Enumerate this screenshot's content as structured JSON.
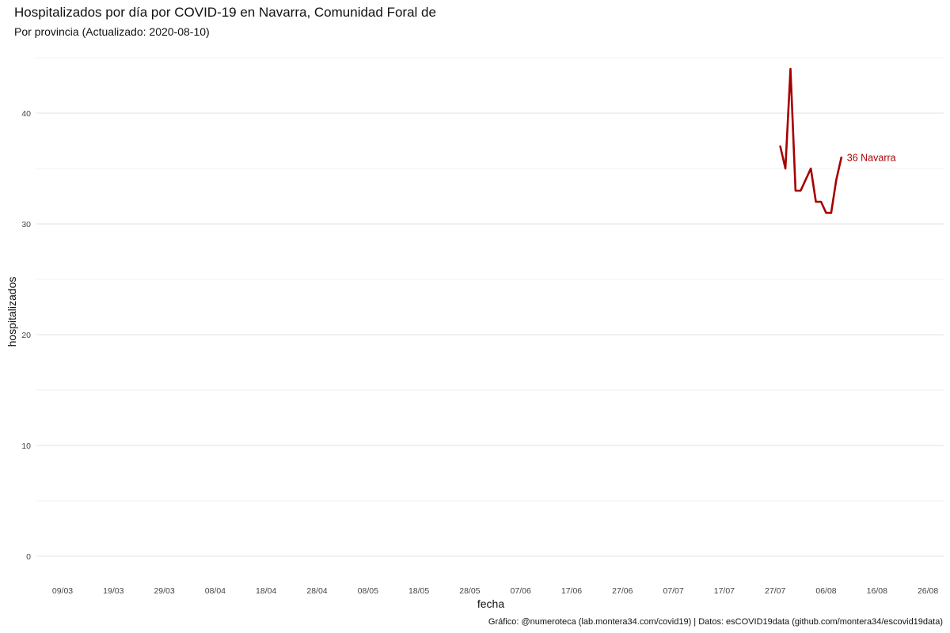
{
  "chart_data": {
    "type": "line",
    "title": "Hospitalizados por día por COVID-19 en Navarra, Comunidad Foral de",
    "subtitle": "Por provincia  (Actualizado: 2020-08-10)",
    "xlabel": "fecha",
    "ylabel": "hospitalizados",
    "caption": "Gráfico: @numeroteca (lab.montera34.com/covid19) | Datos: esCOVID19data (github.com/montera34/escovid19data)",
    "x_ticks": [
      "09/03",
      "19/03",
      "29/03",
      "08/04",
      "18/04",
      "28/04",
      "08/05",
      "18/05",
      "28/05",
      "07/06",
      "17/06",
      "27/06",
      "07/07",
      "17/07",
      "27/07",
      "06/08",
      "16/08",
      "26/08"
    ],
    "y_ticks": [
      0,
      10,
      20,
      30,
      40
    ],
    "ylim": [
      -2,
      45
    ],
    "grid": true,
    "legend": "none",
    "series": [
      {
        "name": "Navarra",
        "color": "#a50000",
        "x": [
          "2020-07-28",
          "2020-07-29",
          "2020-07-30",
          "2020-07-31",
          "2020-08-01",
          "2020-08-03",
          "2020-08-04",
          "2020-08-05",
          "2020-08-06",
          "2020-08-07",
          "2020-08-08",
          "2020-08-09"
        ],
        "values": [
          37,
          35,
          44,
          33,
          33,
          35,
          32,
          32,
          31,
          31,
          34,
          36
        ]
      }
    ],
    "end_label": "36 Navarra"
  }
}
